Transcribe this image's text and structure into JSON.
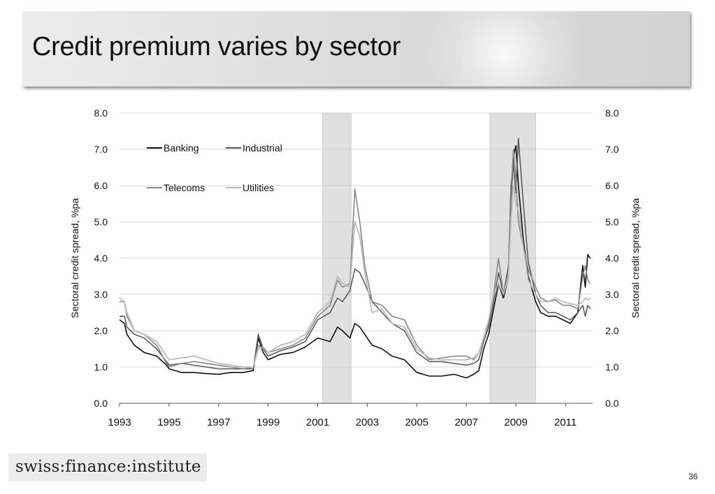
{
  "slide": {
    "title": "Credit premium varies by sector",
    "logo_text": "swiss:finance:institute",
    "page_number": "36"
  },
  "chart_data": {
    "type": "line",
    "title": "",
    "xlabel": "",
    "ylabel": "Sectoral credit spread, %pa",
    "ylabel_right": "Sectoral credit spread, %pa",
    "xlim": [
      1993,
      2012.1
    ],
    "ylim": [
      0,
      8
    ],
    "x_ticks": [
      "1993",
      "1995",
      "1997",
      "1999",
      "2001",
      "2003",
      "2005",
      "2007",
      "2009",
      "2011"
    ],
    "y_ticks": [
      "0.0",
      "1.0",
      "2.0",
      "3.0",
      "4.0",
      "5.0",
      "6.0",
      "7.0",
      "8.0"
    ],
    "y_ticks_right": [
      "0.0",
      "1.0",
      "2.0",
      "3.0",
      "4.0",
      "5.0",
      "6.0",
      "7.0",
      "8.0"
    ],
    "grid": "horizontal",
    "legend_position": "top-left",
    "shaded_periods": [
      [
        2001.2,
        2002.35
      ],
      [
        2007.95,
        2009.8
      ]
    ],
    "colors": {
      "Banking": "#111111",
      "Industrial": "#555555",
      "Telecoms": "#888888",
      "Utilities": "#bbbbbb",
      "shade": "#e0e0e0",
      "grid": "#cccccc"
    },
    "series": [
      {
        "name": "Banking",
        "x": [
          1993.0,
          1993.2,
          1993.3,
          1993.6,
          1994.0,
          1994.5,
          1994.9,
          1995.0,
          1995.5,
          1996.0,
          1996.5,
          1997.0,
          1997.5,
          1998.0,
          1998.4,
          1998.6,
          1998.8,
          1999.0,
          1999.5,
          2000.0,
          2000.5,
          2001.0,
          2001.5,
          2001.8,
          2002.0,
          2002.3,
          2002.5,
          2002.7,
          2002.9,
          2003.2,
          2003.6,
          2004.0,
          2004.5,
          2005.0,
          2005.5,
          2006.0,
          2006.5,
          2007.0,
          2007.3,
          2007.5,
          2007.7,
          2007.9,
          2008.1,
          2008.3,
          2008.5,
          2008.7,
          2008.8,
          2008.9,
          2009.0,
          2009.1,
          2009.3,
          2009.5,
          2009.8,
          2010.0,
          2010.3,
          2010.6,
          2010.9,
          2011.2,
          2011.5,
          2011.7,
          2011.8,
          2011.9,
          2012.0
        ],
        "values": [
          2.3,
          2.2,
          1.9,
          1.6,
          1.4,
          1.3,
          1.05,
          0.95,
          0.85,
          0.85,
          0.82,
          0.8,
          0.85,
          0.85,
          0.9,
          1.8,
          1.4,
          1.2,
          1.35,
          1.4,
          1.55,
          1.8,
          1.7,
          2.1,
          2.0,
          1.8,
          2.2,
          2.1,
          1.9,
          1.6,
          1.5,
          1.3,
          1.2,
          0.85,
          0.75,
          0.75,
          0.8,
          0.7,
          0.8,
          0.9,
          1.5,
          1.9,
          2.6,
          3.3,
          2.9,
          3.5,
          5.6,
          6.8,
          7.1,
          6.0,
          4.5,
          3.5,
          2.8,
          2.5,
          2.4,
          2.4,
          2.3,
          2.2,
          2.5,
          3.8,
          3.2,
          4.1,
          4.0
        ]
      },
      {
        "name": "Industrial",
        "x": [
          1993.0,
          1993.2,
          1993.3,
          1993.6,
          1994.0,
          1994.5,
          1994.9,
          1995.0,
          1995.5,
          1996.0,
          1996.5,
          1997.0,
          1997.5,
          1998.0,
          1998.4,
          1998.6,
          1998.8,
          1999.0,
          1999.5,
          2000.0,
          2000.5,
          2001.0,
          2001.5,
          2001.8,
          2002.0,
          2002.3,
          2002.5,
          2002.7,
          2002.9,
          2003.2,
          2003.6,
          2004.0,
          2004.5,
          2005.0,
          2005.5,
          2006.0,
          2006.5,
          2007.0,
          2007.3,
          2007.5,
          2007.7,
          2007.9,
          2008.1,
          2008.3,
          2008.5,
          2008.7,
          2008.8,
          2008.9,
          2009.0,
          2009.1,
          2009.3,
          2009.5,
          2009.8,
          2010.0,
          2010.3,
          2010.6,
          2010.9,
          2011.2,
          2011.5,
          2011.7,
          2011.8,
          2011.9,
          2012.0
        ],
        "values": [
          2.4,
          2.4,
          2.1,
          1.9,
          1.8,
          1.5,
          1.15,
          1.05,
          1.1,
          1.05,
          1.0,
          0.95,
          0.95,
          0.95,
          0.95,
          1.9,
          1.5,
          1.3,
          1.45,
          1.55,
          1.7,
          2.3,
          2.5,
          2.9,
          2.8,
          3.1,
          3.7,
          3.6,
          3.3,
          2.8,
          2.5,
          2.2,
          2.0,
          1.4,
          1.15,
          1.15,
          1.1,
          1.05,
          1.1,
          1.2,
          1.7,
          2.1,
          2.8,
          3.6,
          3.0,
          3.8,
          6.0,
          6.6,
          5.8,
          7.3,
          5.5,
          3.9,
          3.0,
          2.7,
          2.5,
          2.5,
          2.4,
          2.3,
          2.5,
          2.7,
          2.4,
          2.7,
          2.6
        ]
      },
      {
        "name": "Telecoms",
        "x": [
          1993.0,
          1993.2,
          1993.3,
          1993.6,
          1994.0,
          1994.5,
          1994.9,
          1995.0,
          1995.5,
          1996.0,
          1996.5,
          1997.0,
          1997.5,
          1998.0,
          1998.4,
          1998.6,
          1998.8,
          1999.0,
          1999.5,
          2000.0,
          2000.5,
          2001.0,
          2001.5,
          2001.8,
          2002.0,
          2002.3,
          2002.5,
          2002.7,
          2002.9,
          2003.2,
          2003.6,
          2004.0,
          2004.5,
          2005.0,
          2005.5,
          2006.0,
          2006.5,
          2007.0,
          2007.3,
          2007.5,
          2007.7,
          2007.9,
          2008.1,
          2008.3,
          2008.5,
          2008.7,
          2008.8,
          2008.9,
          2009.0,
          2009.1,
          2009.3,
          2009.5,
          2009.8,
          2010.0,
          2010.3,
          2010.6,
          2010.9,
          2011.2,
          2011.5,
          2011.7,
          2011.8,
          2011.9,
          2012.0
        ],
        "values": [
          2.8,
          2.8,
          2.4,
          2.0,
          1.9,
          1.6,
          1.1,
          1.0,
          1.1,
          1.15,
          1.1,
          1.05,
          1.0,
          0.95,
          1.0,
          1.6,
          1.5,
          1.4,
          1.5,
          1.6,
          1.8,
          2.4,
          2.7,
          3.4,
          3.2,
          3.3,
          5.9,
          5.0,
          3.8,
          2.8,
          2.7,
          2.4,
          2.3,
          1.6,
          1.2,
          1.25,
          1.3,
          1.3,
          1.2,
          1.4,
          1.8,
          2.2,
          3.0,
          4.0,
          3.0,
          3.6,
          5.8,
          7.0,
          6.2,
          5.0,
          4.3,
          3.7,
          3.2,
          2.9,
          2.8,
          2.85,
          2.7,
          2.7,
          2.6,
          3.5,
          3.8,
          3.4,
          3.3
        ]
      },
      {
        "name": "Utilities",
        "x": [
          1993.0,
          1993.2,
          1993.3,
          1993.6,
          1994.0,
          1994.5,
          1994.9,
          1995.0,
          1995.5,
          1996.0,
          1996.5,
          1997.0,
          1997.5,
          1998.0,
          1998.4,
          1998.6,
          1998.8,
          1999.0,
          1999.5,
          2000.0,
          2000.5,
          2001.0,
          2001.5,
          2001.8,
          2002.0,
          2002.3,
          2002.5,
          2002.7,
          2002.9,
          2003.2,
          2003.6,
          2004.0,
          2004.5,
          2005.0,
          2005.5,
          2006.0,
          2006.5,
          2007.0,
          2007.3,
          2007.5,
          2007.7,
          2007.9,
          2008.1,
          2008.3,
          2008.5,
          2008.7,
          2008.8,
          2008.9,
          2009.0,
          2009.1,
          2009.3,
          2009.5,
          2009.8,
          2010.0,
          2010.3,
          2010.6,
          2010.9,
          2011.2,
          2011.5,
          2011.7,
          2011.8,
          2011.9,
          2012.0
        ],
        "values": [
          2.9,
          2.8,
          2.5,
          2.0,
          1.9,
          1.7,
          1.3,
          1.2,
          1.25,
          1.3,
          1.2,
          1.1,
          1.05,
          1.0,
          1.0,
          1.5,
          1.55,
          1.4,
          1.6,
          1.7,
          1.9,
          2.5,
          2.8,
          3.5,
          3.3,
          3.2,
          5.0,
          4.6,
          3.6,
          2.5,
          2.6,
          2.2,
          2.1,
          1.5,
          1.25,
          1.2,
          1.2,
          1.2,
          1.25,
          1.4,
          1.8,
          2.3,
          3.0,
          3.3,
          3.0,
          3.5,
          5.0,
          6.0,
          5.5,
          5.3,
          4.3,
          3.4,
          3.0,
          2.8,
          2.8,
          2.9,
          2.8,
          2.75,
          2.7,
          2.8,
          2.9,
          2.85,
          2.9
        ]
      }
    ]
  }
}
